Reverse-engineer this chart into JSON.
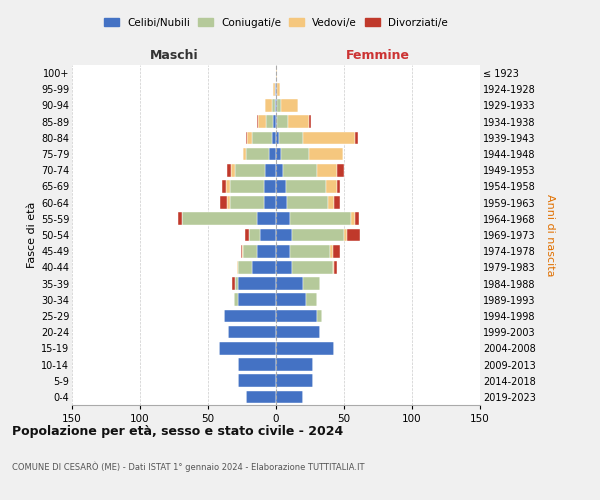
{
  "age_groups": [
    "0-4",
    "5-9",
    "10-14",
    "15-19",
    "20-24",
    "25-29",
    "30-34",
    "35-39",
    "40-44",
    "45-49",
    "50-54",
    "55-59",
    "60-64",
    "65-69",
    "70-74",
    "75-79",
    "80-84",
    "85-89",
    "90-94",
    "95-99",
    "100+"
  ],
  "birth_years": [
    "2019-2023",
    "2014-2018",
    "2009-2013",
    "2004-2008",
    "1999-2003",
    "1994-1998",
    "1989-1993",
    "1984-1988",
    "1979-1983",
    "1974-1978",
    "1969-1973",
    "1964-1968",
    "1959-1963",
    "1954-1958",
    "1949-1953",
    "1944-1948",
    "1939-1943",
    "1934-1938",
    "1929-1933",
    "1924-1928",
    "≤ 1923"
  ],
  "colors": {
    "celibe": "#4472c4",
    "coniugato": "#b5c99a",
    "vedovo": "#f5c77e",
    "divorziato": "#c0392b"
  },
  "maschi": {
    "celibe": [
      22,
      28,
      28,
      42,
      35,
      38,
      28,
      28,
      18,
      14,
      12,
      14,
      9,
      9,
      8,
      5,
      3,
      2,
      1,
      1,
      0
    ],
    "coniugato": [
      0,
      0,
      0,
      0,
      0,
      0,
      3,
      2,
      10,
      10,
      8,
      55,
      25,
      25,
      22,
      17,
      15,
      5,
      2,
      0,
      0
    ],
    "vedovo": [
      0,
      0,
      0,
      0,
      0,
      0,
      0,
      0,
      1,
      1,
      0,
      0,
      2,
      3,
      3,
      2,
      3,
      6,
      5,
      1,
      0
    ],
    "divorziato": [
      0,
      0,
      0,
      0,
      0,
      0,
      0,
      2,
      0,
      1,
      3,
      3,
      5,
      3,
      3,
      0,
      1,
      1,
      0,
      0,
      0
    ]
  },
  "femmine": {
    "nubile": [
      20,
      27,
      27,
      43,
      32,
      30,
      22,
      20,
      12,
      10,
      12,
      10,
      8,
      7,
      5,
      4,
      2,
      1,
      1,
      1,
      0
    ],
    "coniugata": [
      0,
      0,
      0,
      0,
      0,
      4,
      8,
      12,
      30,
      30,
      38,
      45,
      30,
      30,
      25,
      20,
      18,
      8,
      3,
      0,
      0
    ],
    "vedova": [
      0,
      0,
      0,
      0,
      0,
      0,
      0,
      0,
      1,
      2,
      2,
      3,
      5,
      8,
      15,
      25,
      38,
      15,
      12,
      2,
      1
    ],
    "divorziata": [
      0,
      0,
      0,
      0,
      0,
      0,
      0,
      0,
      2,
      5,
      10,
      3,
      4,
      2,
      5,
      0,
      2,
      2,
      0,
      0,
      0
    ]
  },
  "xlim": 150,
  "title": "Popolazione per età, sesso e stato civile - 2024",
  "subtitle": "COMUNE DI CESARÒ (ME) - Dati ISTAT 1° gennaio 2024 - Elaborazione TUTTITALIA.IT",
  "ylabel_left": "Fasce di età",
  "ylabel_right": "Anni di nascita",
  "header_maschi": "Maschi",
  "header_femmine": "Femmine",
  "legend_labels": [
    "Celibi/Nubili",
    "Coniugati/e",
    "Vedovi/e",
    "Divorziati/e"
  ],
  "bg_color": "#f0f0f0",
  "plot_bg": "#ffffff",
  "grid_color": "#cccccc",
  "femmine_header_color": "#cc3333"
}
